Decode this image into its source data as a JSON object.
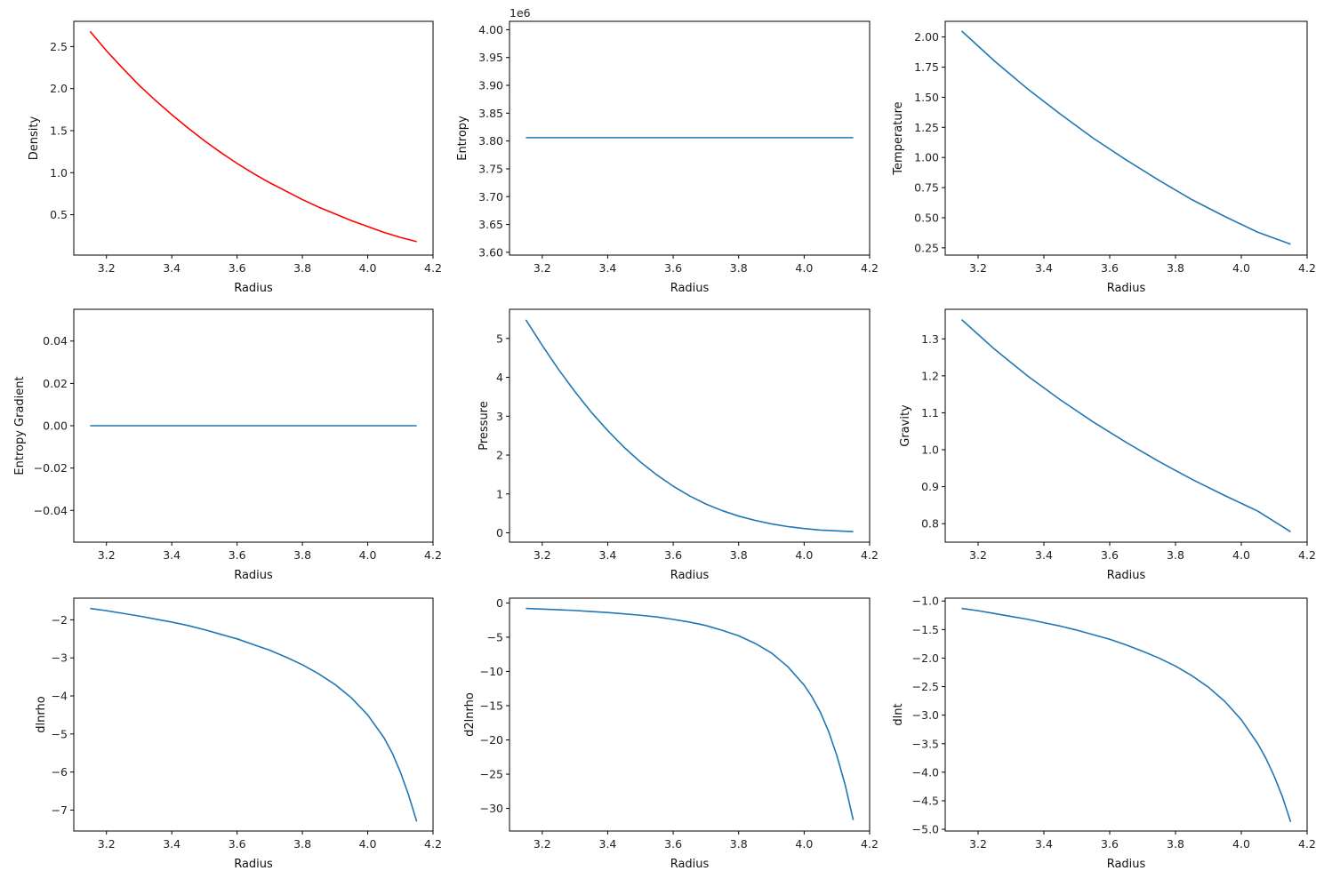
{
  "chart_data": [
    {
      "type": "line",
      "xlabel": "Radius",
      "ylabel": "Density",
      "xlim": [
        3.1,
        4.2
      ],
      "ylim": [
        0.02,
        2.8
      ],
      "xticks": [
        3.2,
        3.4,
        3.6,
        3.8,
        4.0,
        4.2
      ],
      "xtick_labels": [
        "3.2",
        "3.4",
        "3.6",
        "3.8",
        "4.0",
        "4.2"
      ],
      "yticks": [
        0.5,
        1.0,
        1.5,
        2.0,
        2.5
      ],
      "ytick_labels": [
        "0.5",
        "1.0",
        "1.5",
        "2.0",
        "2.5"
      ],
      "offset_text": "",
      "grid": false,
      "series": [
        {
          "color": "#ff0000",
          "x": [
            3.15,
            3.2,
            3.25,
            3.3,
            3.35,
            3.4,
            3.45,
            3.5,
            3.55,
            3.6,
            3.65,
            3.7,
            3.75,
            3.8,
            3.85,
            3.9,
            3.95,
            4.0,
            4.05,
            4.1,
            4.15
          ],
          "y": [
            2.68,
            2.45,
            2.24,
            2.04,
            1.86,
            1.69,
            1.53,
            1.38,
            1.24,
            1.11,
            0.99,
            0.88,
            0.78,
            0.68,
            0.59,
            0.51,
            0.43,
            0.36,
            0.29,
            0.23,
            0.18
          ]
        }
      ]
    },
    {
      "type": "line",
      "xlabel": "Radius",
      "ylabel": "Entropy",
      "xlim": [
        3.1,
        4.2
      ],
      "ylim": [
        3.595,
        4.015
      ],
      "xticks": [
        3.2,
        3.4,
        3.6,
        3.8,
        4.0,
        4.2
      ],
      "xtick_labels": [
        "3.2",
        "3.4",
        "3.6",
        "3.8",
        "4.0",
        "4.2"
      ],
      "yticks": [
        3.6,
        3.65,
        3.7,
        3.75,
        3.8,
        3.85,
        3.9,
        3.95,
        4.0
      ],
      "ytick_labels": [
        "3.60",
        "3.65",
        "3.70",
        "3.75",
        "3.80",
        "3.85",
        "3.90",
        "3.95",
        "4.00"
      ],
      "offset_text": "1e6",
      "grid": false,
      "series": [
        {
          "color": "#1f77b4",
          "x": [
            3.15,
            4.15
          ],
          "y": [
            3.806,
            3.806
          ]
        }
      ]
    },
    {
      "type": "line",
      "xlabel": "Radius",
      "ylabel": "Temperature",
      "xlim": [
        3.1,
        4.2
      ],
      "ylim": [
        0.19,
        2.13
      ],
      "xticks": [
        3.2,
        3.4,
        3.6,
        3.8,
        4.0,
        4.2
      ],
      "xtick_labels": [
        "3.2",
        "3.4",
        "3.6",
        "3.8",
        "4.0",
        "4.2"
      ],
      "yticks": [
        0.25,
        0.5,
        0.75,
        1.0,
        1.25,
        1.5,
        1.75,
        2.0
      ],
      "ytick_labels": [
        "0.25",
        "0.50",
        "0.75",
        "1.00",
        "1.25",
        "1.50",
        "1.75",
        "2.00"
      ],
      "offset_text": "",
      "grid": false,
      "series": [
        {
          "color": "#1f77b4",
          "x": [
            3.15,
            3.25,
            3.35,
            3.45,
            3.55,
            3.65,
            3.75,
            3.85,
            3.95,
            4.05,
            4.15
          ],
          "y": [
            2.05,
            1.8,
            1.57,
            1.36,
            1.16,
            0.98,
            0.81,
            0.65,
            0.51,
            0.38,
            0.28
          ]
        }
      ]
    },
    {
      "type": "line",
      "xlabel": "Radius",
      "ylabel": "Entropy Gradient",
      "xlim": [
        3.1,
        4.2
      ],
      "ylim": [
        -0.055,
        0.055
      ],
      "xticks": [
        3.2,
        3.4,
        3.6,
        3.8,
        4.0,
        4.2
      ],
      "xtick_labels": [
        "3.2",
        "3.4",
        "3.6",
        "3.8",
        "4.0",
        "4.2"
      ],
      "yticks": [
        -0.04,
        -0.02,
        0.0,
        0.02,
        0.04
      ],
      "ytick_labels": [
        "−0.04",
        "−0.02",
        "0.00",
        "0.02",
        "0.04"
      ],
      "offset_text": "",
      "grid": false,
      "series": [
        {
          "color": "#1f77b4",
          "x": [
            3.15,
            4.15
          ],
          "y": [
            0.0,
            0.0
          ]
        }
      ]
    },
    {
      "type": "line",
      "xlabel": "Radius",
      "ylabel": "Pressure",
      "xlim": [
        3.1,
        4.2
      ],
      "ylim": [
        -0.24,
        5.75
      ],
      "xticks": [
        3.2,
        3.4,
        3.6,
        3.8,
        4.0,
        4.2
      ],
      "xtick_labels": [
        "3.2",
        "3.4",
        "3.6",
        "3.8",
        "4.0",
        "4.2"
      ],
      "yticks": [
        0,
        1,
        2,
        3,
        4,
        5
      ],
      "ytick_labels": [
        "0",
        "1",
        "2",
        "3",
        "4",
        "5"
      ],
      "offset_text": "",
      "grid": false,
      "series": [
        {
          "color": "#1f77b4",
          "x": [
            3.15,
            3.2,
            3.25,
            3.3,
            3.35,
            3.4,
            3.45,
            3.5,
            3.55,
            3.6,
            3.65,
            3.7,
            3.75,
            3.8,
            3.85,
            3.9,
            3.95,
            4.0,
            4.05,
            4.1,
            4.15
          ],
          "y": [
            5.48,
            4.82,
            4.2,
            3.63,
            3.1,
            2.63,
            2.2,
            1.82,
            1.49,
            1.2,
            0.95,
            0.74,
            0.57,
            0.43,
            0.32,
            0.23,
            0.16,
            0.11,
            0.07,
            0.05,
            0.03
          ]
        }
      ]
    },
    {
      "type": "line",
      "xlabel": "Radius",
      "ylabel": "Gravity",
      "xlim": [
        3.1,
        4.2
      ],
      "ylim": [
        0.75,
        1.38
      ],
      "xticks": [
        3.2,
        3.4,
        3.6,
        3.8,
        4.0,
        4.2
      ],
      "xtick_labels": [
        "3.2",
        "3.4",
        "3.6",
        "3.8",
        "4.0",
        "4.2"
      ],
      "yticks": [
        0.8,
        0.9,
        1.0,
        1.1,
        1.2,
        1.3
      ],
      "ytick_labels": [
        "0.8",
        "0.9",
        "1.0",
        "1.1",
        "1.2",
        "1.3"
      ],
      "offset_text": "",
      "grid": false,
      "series": [
        {
          "color": "#1f77b4",
          "x": [
            3.15,
            3.25,
            3.35,
            3.45,
            3.55,
            3.65,
            3.75,
            3.85,
            3.95,
            4.05,
            4.15
          ],
          "y": [
            1.352,
            1.272,
            1.2,
            1.135,
            1.075,
            1.02,
            0.968,
            0.92,
            0.876,
            0.834,
            0.778
          ]
        }
      ]
    },
    {
      "type": "line",
      "xlabel": "Radius",
      "ylabel": "dlnrho",
      "xlim": [
        3.1,
        4.2
      ],
      "ylim": [
        -7.55,
        -1.43
      ],
      "xticks": [
        3.2,
        3.4,
        3.6,
        3.8,
        4.0,
        4.2
      ],
      "xtick_labels": [
        "3.2",
        "3.4",
        "3.6",
        "3.8",
        "4.0",
        "4.2"
      ],
      "yticks": [
        -7,
        -6,
        -5,
        -4,
        -3,
        -2
      ],
      "ytick_labels": [
        "−7",
        "−6",
        "−5",
        "−4",
        "−3",
        "−2"
      ],
      "offset_text": "",
      "grid": false,
      "series": [
        {
          "color": "#1f77b4",
          "x": [
            3.15,
            3.2,
            3.25,
            3.3,
            3.35,
            3.4,
            3.45,
            3.5,
            3.55,
            3.6,
            3.65,
            3.7,
            3.75,
            3.8,
            3.85,
            3.9,
            3.95,
            4.0,
            4.05,
            4.075,
            4.1,
            4.125,
            4.15
          ],
          "y": [
            -1.7,
            -1.76,
            -1.83,
            -1.9,
            -1.98,
            -2.06,
            -2.15,
            -2.26,
            -2.38,
            -2.5,
            -2.65,
            -2.8,
            -2.98,
            -3.18,
            -3.42,
            -3.7,
            -4.05,
            -4.5,
            -5.1,
            -5.5,
            -6.0,
            -6.6,
            -7.3
          ]
        }
      ]
    },
    {
      "type": "line",
      "xlabel": "Radius",
      "ylabel": "d2lnrho",
      "xlim": [
        3.1,
        4.2
      ],
      "ylim": [
        -33.3,
        0.7
      ],
      "xticks": [
        3.2,
        3.4,
        3.6,
        3.8,
        4.0,
        4.2
      ],
      "xtick_labels": [
        "3.2",
        "3.4",
        "3.6",
        "3.8",
        "4.0",
        "4.2"
      ],
      "yticks": [
        -30,
        -25,
        -20,
        -15,
        -10,
        -5,
        0
      ],
      "ytick_labels": [
        "−30",
        "−25",
        "−20",
        "−15",
        "−10",
        "−5",
        "0"
      ],
      "offset_text": "",
      "grid": false,
      "series": [
        {
          "color": "#1f77b4",
          "x": [
            3.15,
            3.2,
            3.25,
            3.3,
            3.35,
            3.4,
            3.45,
            3.5,
            3.55,
            3.6,
            3.65,
            3.7,
            3.75,
            3.8,
            3.85,
            3.9,
            3.95,
            4.0,
            4.025,
            4.05,
            4.075,
            4.1,
            4.125,
            4.15
          ],
          "y": [
            -0.8,
            -0.9,
            -1.0,
            -1.1,
            -1.25,
            -1.4,
            -1.6,
            -1.8,
            -2.05,
            -2.4,
            -2.8,
            -3.3,
            -4.0,
            -4.8,
            -5.9,
            -7.3,
            -9.3,
            -12.0,
            -13.8,
            -16.0,
            -18.8,
            -22.3,
            -26.5,
            -31.7
          ]
        }
      ]
    },
    {
      "type": "line",
      "xlabel": "Radius",
      "ylabel": "dlnt",
      "xlim": [
        3.1,
        4.2
      ],
      "ylim": [
        -5.03,
        -0.95
      ],
      "xticks": [
        3.2,
        3.4,
        3.6,
        3.8,
        4.0,
        4.2
      ],
      "xtick_labels": [
        "3.2",
        "3.4",
        "3.6",
        "3.8",
        "4.0",
        "4.2"
      ],
      "yticks": [
        -5.0,
        -4.5,
        -4.0,
        -3.5,
        -3.0,
        -2.5,
        -2.0,
        -1.5,
        -1.0
      ],
      "ytick_labels": [
        "−5.0",
        "−4.5",
        "−4.0",
        "−3.5",
        "−3.0",
        "−2.5",
        "−2.0",
        "−1.5",
        "−1.0"
      ],
      "offset_text": "",
      "grid": false,
      "series": [
        {
          "color": "#1f77b4",
          "x": [
            3.15,
            3.2,
            3.25,
            3.3,
            3.35,
            3.4,
            3.45,
            3.5,
            3.55,
            3.6,
            3.65,
            3.7,
            3.75,
            3.8,
            3.85,
            3.9,
            3.95,
            4.0,
            4.05,
            4.075,
            4.1,
            4.125,
            4.15
          ],
          "y": [
            -1.13,
            -1.17,
            -1.22,
            -1.27,
            -1.32,
            -1.38,
            -1.44,
            -1.51,
            -1.59,
            -1.67,
            -1.77,
            -1.88,
            -2.0,
            -2.14,
            -2.31,
            -2.51,
            -2.76,
            -3.08,
            -3.5,
            -3.76,
            -4.07,
            -4.43,
            -4.87
          ]
        }
      ]
    }
  ]
}
